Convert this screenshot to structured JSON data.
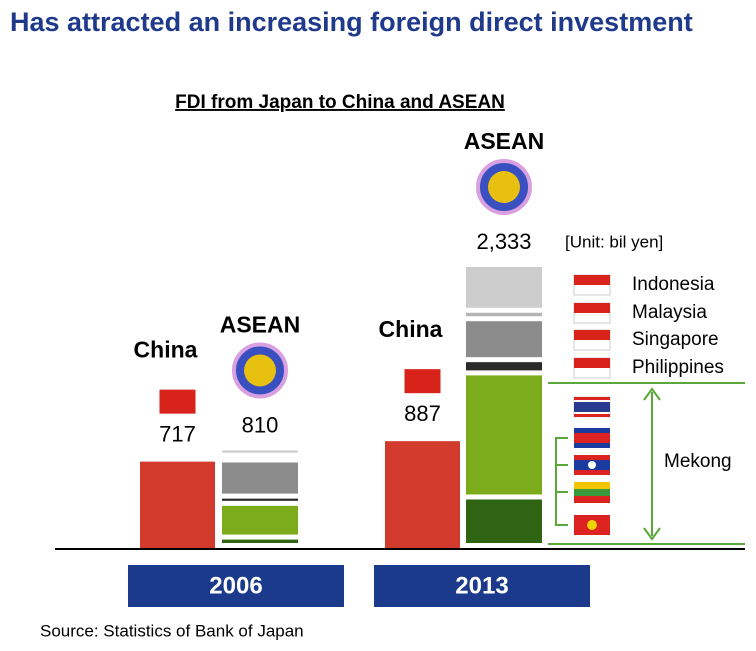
{
  "chart_data": {
    "type": "stacked_bar",
    "title": "Has attracted an increasing foreign direct investment",
    "subtitle": "FDI from Japan to China and ASEAN",
    "unit": "[Unit: bil yen]",
    "source": "Source: Statistics of Bank of Japan",
    "categories": [
      "2006",
      "2013"
    ],
    "china": {
      "name": "China",
      "color": "#d23a2c",
      "values": [
        717,
        887
      ]
    },
    "asean": {
      "name": "ASEAN",
      "totals": [
        810,
        2333
      ],
      "total_labels": [
        "810",
        "2,333"
      ],
      "series": [
        {
          "color": "#2f6512",
          "values": [
            70,
            403
          ]
        },
        {
          "color": "#7cac1c",
          "values": [
            280,
            1030
          ]
        },
        {
          "name": "Philippines",
          "color": "#2b2b2b",
          "values": [
            60,
            110
          ]
        },
        {
          "name": "Singapore",
          "color": "#8c8c8c",
          "values": [
            300,
            340
          ]
        },
        {
          "name": "Malaysia",
          "color": "#b4b4b4",
          "values": [
            40,
            70
          ]
        },
        {
          "name": "Indonesia",
          "color": "#cdcdcd",
          "values": [
            60,
            380
          ]
        }
      ]
    },
    "mekong_label": "Mekong"
  }
}
